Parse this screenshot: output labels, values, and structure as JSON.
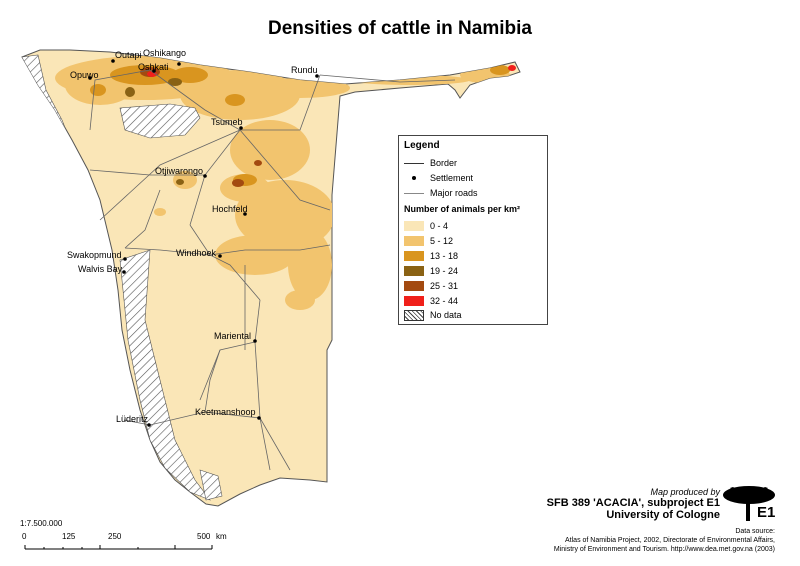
{
  "title": "Densities of cattle in Namibia",
  "towns": [
    {
      "name": "Outapi"
    },
    {
      "name": "Oshikango"
    },
    {
      "name": "Oshkati"
    },
    {
      "name": "Opuwo"
    },
    {
      "name": "Rundu"
    },
    {
      "name": "Tsumeb"
    },
    {
      "name": "Otjiwarongo"
    },
    {
      "name": "Hochfeld"
    },
    {
      "name": "Swakopmund"
    },
    {
      "name": "Walvis Bay"
    },
    {
      "name": "Windhoek"
    },
    {
      "name": "Mariental"
    },
    {
      "name": "Keetmanshoop"
    },
    {
      "name": "Lüderitz"
    }
  ],
  "legend": {
    "title": "Legend",
    "border": "Border",
    "settlement": "Settlement",
    "roads": "Major roads",
    "density_title": "Number of animals per km²",
    "classes": [
      {
        "label": "0 - 4",
        "color": "#fae6b7"
      },
      {
        "label": "5 - 12",
        "color": "#f2c46e"
      },
      {
        "label": "13 - 18",
        "color": "#d9951f"
      },
      {
        "label": "19 - 24",
        "color": "#8a6214"
      },
      {
        "label": "25 - 31",
        "color": "#a34a10"
      },
      {
        "label": "32 - 44",
        "color": "#f0201a"
      }
    ],
    "nodata": "No data"
  },
  "credit": {
    "line1": "Map produced by",
    "line2": "SFB 389 'ACACIA', subproject E1",
    "line3": "University of Cologne",
    "logo_text": "E1"
  },
  "source": {
    "line1": "Data source:",
    "line2": "Atlas of Namibia Project, 2002, Directorate of Environmental Affairs,",
    "line3": "Ministry of Environment and Tourism. http://www.dea.met.gov.na (2003)"
  },
  "scale": {
    "ratio": "1:7.500.000",
    "ticks": [
      "0",
      "125",
      "250",
      "500"
    ],
    "unit": "km"
  },
  "colors": {
    "land": "#fae6b7",
    "border": "#555555",
    "roads": "#666666"
  }
}
